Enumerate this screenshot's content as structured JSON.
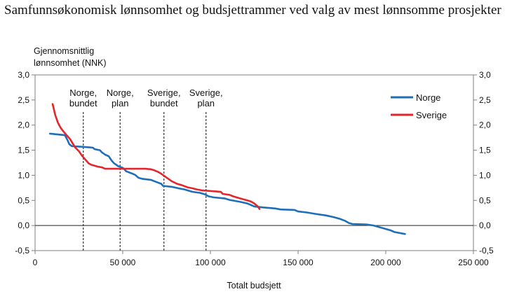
{
  "chart_data": {
    "type": "line",
    "title": "Samfunnsøkonomisk lønnsomhet og budsjettrammer ved valg av mest lønnsomme prosjekter",
    "ylabel_lines": [
      "Gjennomsnittlig",
      "lønnsomhet (NNK)"
    ],
    "xlabel": "Totalt budsjett",
    "xlim": [
      0,
      250000
    ],
    "ylim": [
      -0.5,
      3.0
    ],
    "x_ticks": [
      0,
      50000,
      100000,
      150000,
      200000,
      250000
    ],
    "x_tick_labels": [
      "0",
      "50 000",
      "100 000",
      "150 000",
      "200 000",
      "250 000"
    ],
    "y_ticks": [
      -0.5,
      0.0,
      0.5,
      1.0,
      1.5,
      2.0,
      2.5,
      3.0
    ],
    "y_tick_labels": [
      "-0,5",
      "0,0",
      "0,5",
      "1,0",
      "1,5",
      "2,0",
      "2,5",
      "3,0"
    ],
    "grid": false,
    "legend_position": "top-right",
    "reference_lines": [
      {
        "x": 27500,
        "label_lines": [
          "Norge,",
          "bundet"
        ]
      },
      {
        "x": 48500,
        "label_lines": [
          "Norge,",
          "plan"
        ]
      },
      {
        "x": 73500,
        "label_lines": [
          "Sverige,",
          "bundet"
        ]
      },
      {
        "x": 97500,
        "label_lines": [
          "Sverige,",
          "plan"
        ]
      }
    ],
    "series": [
      {
        "name": "Norge",
        "color": "#1f6fb8",
        "points": [
          [
            8500,
            1.83
          ],
          [
            14000,
            1.81
          ],
          [
            17000,
            1.8
          ],
          [
            18500,
            1.7
          ],
          [
            19500,
            1.62
          ],
          [
            21000,
            1.58
          ],
          [
            26000,
            1.57
          ],
          [
            30000,
            1.56
          ],
          [
            33000,
            1.55
          ],
          [
            34000,
            1.52
          ],
          [
            37000,
            1.5
          ],
          [
            38000,
            1.46
          ],
          [
            40000,
            1.41
          ],
          [
            42000,
            1.38
          ],
          [
            43500,
            1.3
          ],
          [
            45000,
            1.24
          ],
          [
            47500,
            1.18
          ],
          [
            50000,
            1.15
          ],
          [
            52000,
            1.08
          ],
          [
            55000,
            1.04
          ],
          [
            57000,
            1.01
          ],
          [
            59000,
            0.95
          ],
          [
            61000,
            0.93
          ],
          [
            66000,
            0.91
          ],
          [
            69000,
            0.87
          ],
          [
            72000,
            0.83
          ],
          [
            73000,
            0.79
          ],
          [
            78000,
            0.77
          ],
          [
            82000,
            0.74
          ],
          [
            85000,
            0.72
          ],
          [
            88000,
            0.69
          ],
          [
            90000,
            0.67
          ],
          [
            94000,
            0.65
          ],
          [
            97000,
            0.62
          ],
          [
            99000,
            0.58
          ],
          [
            102000,
            0.56
          ],
          [
            108000,
            0.54
          ],
          [
            111000,
            0.51
          ],
          [
            114000,
            0.49
          ],
          [
            117000,
            0.47
          ],
          [
            121000,
            0.44
          ],
          [
            125000,
            0.38
          ],
          [
            130000,
            0.36
          ],
          [
            137000,
            0.34
          ],
          [
            140000,
            0.32
          ],
          [
            148000,
            0.31
          ],
          [
            150000,
            0.28
          ],
          [
            155000,
            0.26
          ],
          [
            160000,
            0.23
          ],
          [
            166000,
            0.2
          ],
          [
            170000,
            0.17
          ],
          [
            174000,
            0.13
          ],
          [
            177000,
            0.09
          ],
          [
            179000,
            0.05
          ],
          [
            181000,
            0.03
          ],
          [
            189000,
            0.02
          ],
          [
            193000,
            0.0
          ],
          [
            196000,
            -0.03
          ],
          [
            199000,
            -0.06
          ],
          [
            203000,
            -0.1
          ],
          [
            205000,
            -0.13
          ],
          [
            208000,
            -0.15
          ],
          [
            211000,
            -0.17
          ]
        ]
      },
      {
        "name": "Sverige",
        "color": "#e3262b",
        "points": [
          [
            10000,
            2.42
          ],
          [
            11500,
            2.2
          ],
          [
            13000,
            2.05
          ],
          [
            14500,
            1.95
          ],
          [
            16000,
            1.88
          ],
          [
            18000,
            1.8
          ],
          [
            20000,
            1.72
          ],
          [
            21500,
            1.63
          ],
          [
            23000,
            1.55
          ],
          [
            25000,
            1.48
          ],
          [
            27000,
            1.38
          ],
          [
            29000,
            1.3
          ],
          [
            30500,
            1.24
          ],
          [
            32000,
            1.21
          ],
          [
            34000,
            1.19
          ],
          [
            36000,
            1.17
          ],
          [
            38000,
            1.16
          ],
          [
            40000,
            1.13
          ],
          [
            50000,
            1.13
          ],
          [
            55000,
            1.13
          ],
          [
            63000,
            1.13
          ],
          [
            66000,
            1.12
          ],
          [
            68000,
            1.1
          ],
          [
            70000,
            1.07
          ],
          [
            72000,
            1.03
          ],
          [
            74000,
            0.98
          ],
          [
            76000,
            0.93
          ],
          [
            78000,
            0.88
          ],
          [
            81000,
            0.83
          ],
          [
            84000,
            0.8
          ],
          [
            87000,
            0.76
          ],
          [
            90000,
            0.74
          ],
          [
            92000,
            0.72
          ],
          [
            95000,
            0.7
          ],
          [
            99000,
            0.69
          ],
          [
            103000,
            0.68
          ],
          [
            106000,
            0.67
          ],
          [
            107000,
            0.63
          ],
          [
            111000,
            0.61
          ],
          [
            113000,
            0.58
          ],
          [
            116000,
            0.55
          ],
          [
            119000,
            0.52
          ],
          [
            121000,
            0.5
          ],
          [
            123000,
            0.48
          ],
          [
            125000,
            0.44
          ],
          [
            127000,
            0.38
          ],
          [
            128000,
            0.33
          ]
        ]
      }
    ]
  }
}
